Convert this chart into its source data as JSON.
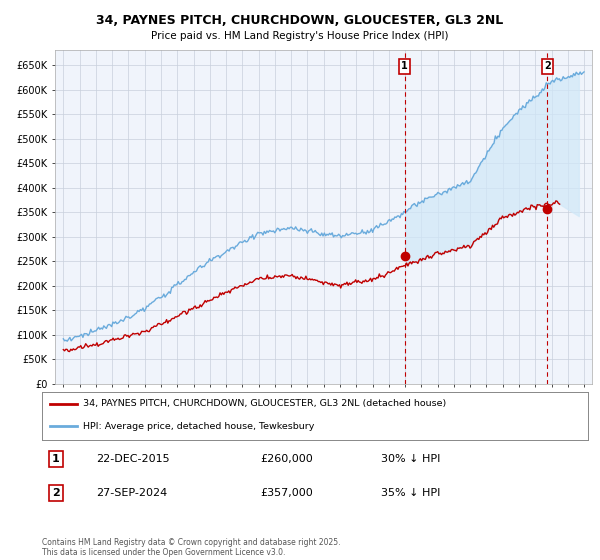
{
  "title": "34, PAYNES PITCH, CHURCHDOWN, GLOUCESTER, GL3 2NL",
  "subtitle": "Price paid vs. HM Land Registry's House Price Index (HPI)",
  "hpi_label": "HPI: Average price, detached house, Tewkesbury",
  "property_label": "34, PAYNES PITCH, CHURCHDOWN, GLOUCESTER, GL3 2NL (detached house)",
  "annotation1": {
    "label": "1",
    "date": "22-DEC-2015",
    "price": "£260,000",
    "hpi_pct": "30% ↓ HPI",
    "x": 2015.97
  },
  "annotation2": {
    "label": "2",
    "date": "27-SEP-2024",
    "price": "£357,000",
    "hpi_pct": "35% ↓ HPI",
    "x": 2024.75
  },
  "copyright": "Contains HM Land Registry data © Crown copyright and database right 2025.\nThis data is licensed under the Open Government Licence v3.0.",
  "ylim": [
    0,
    680000
  ],
  "xlim": [
    1994.5,
    2027.5
  ],
  "yticks": [
    0,
    50000,
    100000,
    150000,
    200000,
    250000,
    300000,
    350000,
    400000,
    450000,
    500000,
    550000,
    600000,
    650000
  ],
  "ytick_labels": [
    "£0",
    "£50K",
    "£100K",
    "£150K",
    "£200K",
    "£250K",
    "£300K",
    "£350K",
    "£400K",
    "£450K",
    "£500K",
    "£550K",
    "£600K",
    "£650K"
  ],
  "xticks": [
    1995,
    1996,
    1997,
    1998,
    1999,
    2000,
    2001,
    2002,
    2003,
    2004,
    2005,
    2006,
    2007,
    2008,
    2009,
    2010,
    2011,
    2012,
    2013,
    2014,
    2015,
    2016,
    2017,
    2018,
    2019,
    2020,
    2021,
    2022,
    2023,
    2024,
    2025,
    2026,
    2027
  ],
  "hpi_color": "#6aabdc",
  "property_color": "#c00000",
  "fill_color": "#d0e8f8",
  "background_color": "#ffffff",
  "plot_bg_color": "#f0f4fb",
  "grid_color": "#c8d0dc",
  "marker1_x": 2015.97,
  "marker1_y": 260000,
  "marker2_x": 2024.75,
  "marker2_y": 357000
}
